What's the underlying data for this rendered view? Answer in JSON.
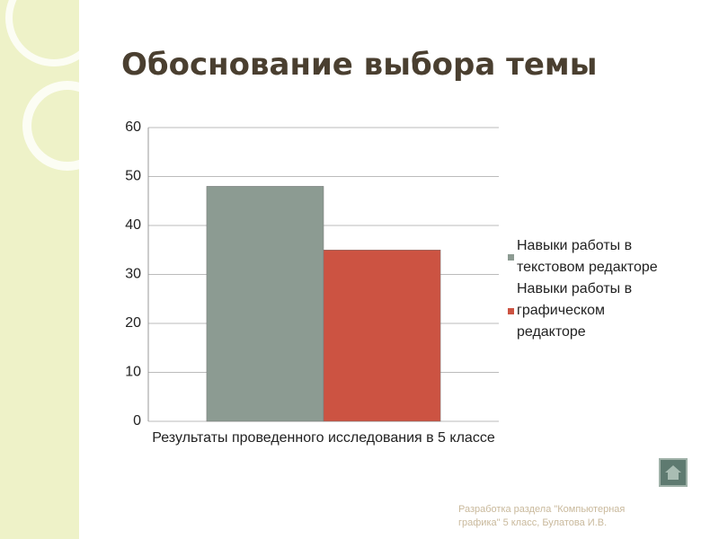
{
  "chart_data": {
    "type": "bar",
    "title": "Обоснование выбора темы",
    "categories": [
      "Результаты проведенного исследования в 5 классе"
    ],
    "series": [
      {
        "name": "Навыки работы в текстовом редакторе",
        "color": "#8c9b92",
        "values": [
          48
        ]
      },
      {
        "name": "Навыки работы в графическом редакторе",
        "color": "#cc5342",
        "values": [
          35
        ]
      }
    ],
    "ylim": [
      0,
      60
    ],
    "yticks": [
      0,
      10,
      20,
      30,
      40,
      50,
      60
    ],
    "grid": true,
    "legend": "right"
  },
  "footer": "Разработка раздела \"Компьютерная графика\" 5 класс, Булатова И.В."
}
